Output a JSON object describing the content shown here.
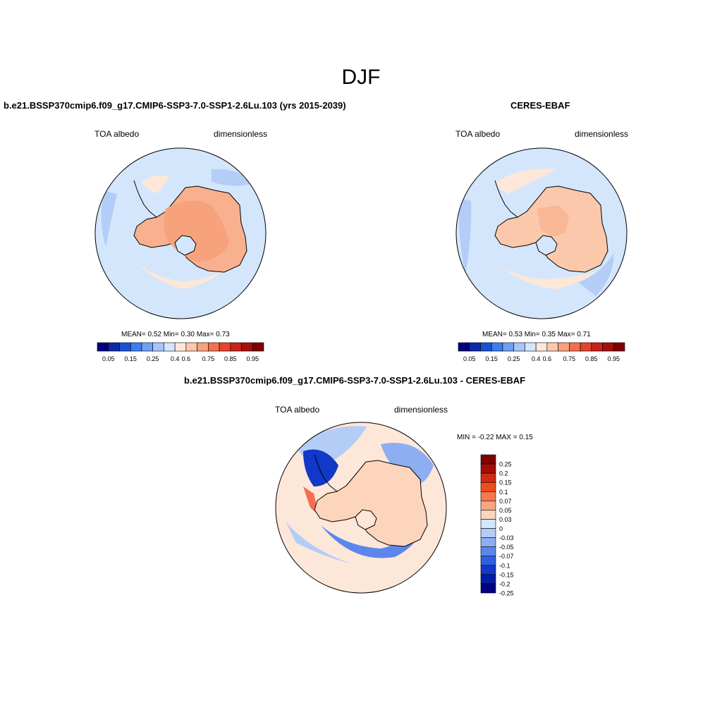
{
  "title": "DJF",
  "panels": [
    {
      "title": "b.e21.BSSP370cmip6.f09_g17.CMIP6-SSP3-7.0-SSP1-2.6Lu.103 (yrs 2015-2039)",
      "left_label": "TOA albedo",
      "right_label": "dimensionless",
      "stats": "MEAN=   0.52  Min=   0.30  Max=   0.73",
      "colorbar_ticks": [
        "0.05",
        "0.15",
        "0.25",
        "0.4",
        "0.6",
        "0.75",
        "0.85",
        "0.95"
      ]
    },
    {
      "title": "CERES-EBAF",
      "left_label": "TOA albedo",
      "right_label": "dimensionless",
      "stats": "MEAN=   0.53  Min=   0.35  Max=   0.71",
      "colorbar_ticks": [
        "0.05",
        "0.15",
        "0.25",
        "0.4",
        "0.6",
        "0.75",
        "0.85",
        "0.95"
      ]
    },
    {
      "title": "b.e21.BSSP370cmip6.f09_g17.CMIP6-SSP3-7.0-SSP1-2.6Lu.103 - CERES-EBAF",
      "left_label": "TOA albedo",
      "right_label": "dimensionless",
      "stats": "MIN =  -0.22 MAX =   0.15",
      "colorbar_ticks": [
        "0.25",
        "0.2",
        "0.15",
        "0.1",
        "0.07",
        "0.05",
        "0.03",
        "0",
        "-0.03",
        "-0.05",
        "-0.07",
        "-0.1",
        "-0.15",
        "-0.2",
        "-0.25"
      ]
    }
  ],
  "palettes": {
    "absolute": [
      "#00007f",
      "#0a2aa6",
      "#1a52d6",
      "#3d7df0",
      "#6fa0f2",
      "#a6c4f5",
      "#d4e6fb",
      "#fde7d9",
      "#fbc8ab",
      "#f7a27c",
      "#f0704f",
      "#e4432c",
      "#c8221a",
      "#a50f0a",
      "#7f0000"
    ],
    "difference": [
      "#7f0000",
      "#a80c06",
      "#d02b12",
      "#ee4d1f",
      "#f7774e",
      "#fba580",
      "#fdd5bd",
      "#d4e6fb",
      "#b3cdf7",
      "#8daef2",
      "#5c86ec",
      "#2e5fe0",
      "#1238c8",
      "#001da6",
      "#00007f"
    ]
  }
}
